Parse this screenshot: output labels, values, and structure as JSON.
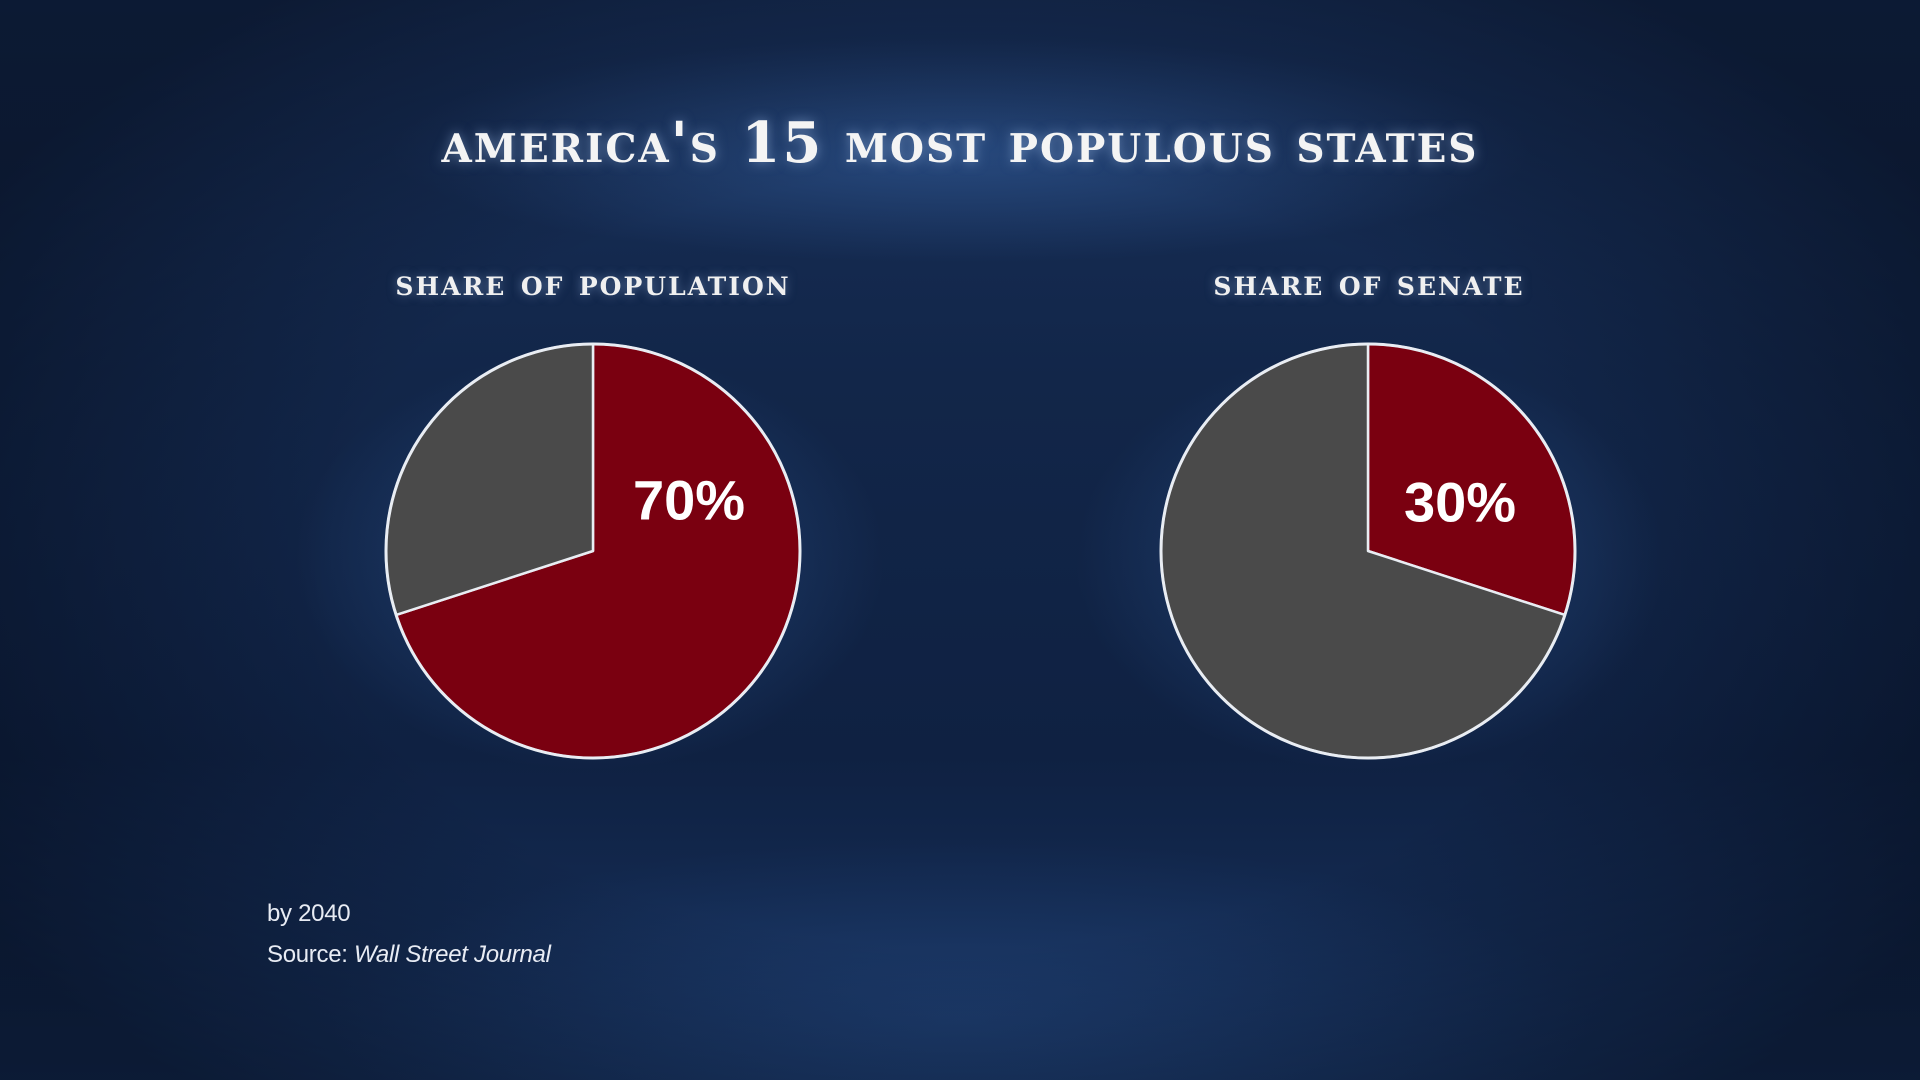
{
  "title": "America's 15 Most Populous States",
  "colors": {
    "accent": "#7a0010",
    "other": "#4a4a4a",
    "outline": "#e9edf3"
  },
  "chart_data": [
    {
      "type": "pie",
      "title": "Share of Population",
      "slices": [
        {
          "name": "",
          "value": 70,
          "color": "#7a0010",
          "label": "70%"
        },
        {
          "name": "",
          "value": 30,
          "color": "#4a4a4a",
          "label": ""
        }
      ]
    },
    {
      "type": "pie",
      "title": "Share of Senate",
      "slices": [
        {
          "name": "",
          "value": 30,
          "color": "#7a0010",
          "label": "30%"
        },
        {
          "name": "",
          "value": 70,
          "color": "#4a4a4a",
          "label": ""
        }
      ]
    }
  ],
  "footnotes": {
    "year": "by 2040",
    "source_prefix": "Source:",
    "source_name": "Wall Street Journal"
  }
}
